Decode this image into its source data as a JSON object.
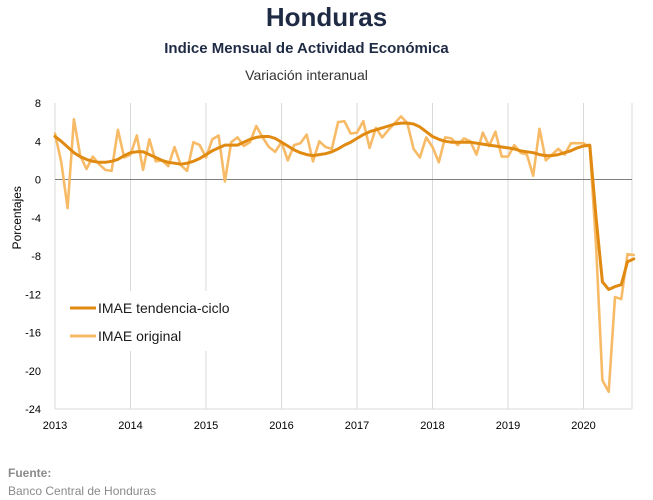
{
  "header": {
    "title": "Honduras",
    "subtitle": "Indice Mensual de  Actividad Económica",
    "subtitle2": "Variación interanual"
  },
  "source": {
    "label": "Fuente:",
    "text": "Banco Central de Honduras"
  },
  "colors": {
    "trend": "#e08a12",
    "original": "#f7bb68",
    "grid": "#d9d9d9",
    "zero_line": "#7f7f7f"
  },
  "chart_data": {
    "type": "line",
    "title": "Honduras",
    "subtitle": "Indice Mensual de  Actividad Económica",
    "ylabel": "Porcentajes",
    "xlabel": "",
    "ylim": [
      -24,
      8
    ],
    "yticks": [
      "8",
      "4",
      "0",
      "-4",
      "-8",
      "-12",
      "-16",
      "-20",
      "-24"
    ],
    "xticks": [
      "2013",
      "2014",
      "2015",
      "2016",
      "2017",
      "2018",
      "2019",
      "2020"
    ],
    "grid": "vertical at years",
    "legend_position": "lower-left",
    "series": [
      {
        "name": "IMAE tendencia-ciclo",
        "x": [
          "2013-01",
          "2013-02",
          "2013-03",
          "2013-04",
          "2013-05",
          "2013-06",
          "2013-07",
          "2013-08",
          "2013-09",
          "2013-10",
          "2013-11",
          "2013-12",
          "2014-01",
          "2014-02",
          "2014-03",
          "2014-04",
          "2014-05",
          "2014-06",
          "2014-07",
          "2014-08",
          "2014-09",
          "2014-10",
          "2014-11",
          "2014-12",
          "2015-01",
          "2015-02",
          "2015-03",
          "2015-04",
          "2015-05",
          "2015-06",
          "2015-07",
          "2015-08",
          "2015-09",
          "2015-10",
          "2015-11",
          "2015-12",
          "2016-01",
          "2016-02",
          "2016-03",
          "2016-04",
          "2016-05",
          "2016-06",
          "2016-07",
          "2016-08",
          "2016-09",
          "2016-10",
          "2016-11",
          "2016-12",
          "2017-01",
          "2017-02",
          "2017-03",
          "2017-04",
          "2017-05",
          "2017-06",
          "2017-07",
          "2017-08",
          "2017-09",
          "2017-10",
          "2017-11",
          "2017-12",
          "2018-01",
          "2018-02",
          "2018-03",
          "2018-04",
          "2018-05",
          "2018-06",
          "2018-07",
          "2018-08",
          "2018-09",
          "2018-10",
          "2018-11",
          "2018-12",
          "2019-01",
          "2019-02",
          "2019-03",
          "2019-04",
          "2019-05",
          "2019-06",
          "2019-07",
          "2019-08",
          "2019-09",
          "2019-10",
          "2019-11",
          "2019-12",
          "2020-01",
          "2020-02",
          "2020-03",
          "2020-04",
          "2020-05",
          "2020-06",
          "2020-07",
          "2020-08",
          "2020-09"
        ],
        "values": [
          4.5,
          4.0,
          3.4,
          2.8,
          2.4,
          2.1,
          1.9,
          1.8,
          1.8,
          1.9,
          2.1,
          2.5,
          2.8,
          2.9,
          2.9,
          2.6,
          2.3,
          2.0,
          1.8,
          1.7,
          1.6,
          1.7,
          1.9,
          2.2,
          2.6,
          3.0,
          3.3,
          3.6,
          3.6,
          3.6,
          3.9,
          4.2,
          4.4,
          4.5,
          4.5,
          4.3,
          3.9,
          3.5,
          3.1,
          2.8,
          2.6,
          2.5,
          2.6,
          2.7,
          2.9,
          3.2,
          3.6,
          3.9,
          4.3,
          4.7,
          5.0,
          5.2,
          5.4,
          5.6,
          5.8,
          5.9,
          5.9,
          5.8,
          5.5,
          5.0,
          4.5,
          4.2,
          4.0,
          3.9,
          3.9,
          3.9,
          3.9,
          3.8,
          3.7,
          3.6,
          3.5,
          3.4,
          3.3,
          3.2,
          3.0,
          2.9,
          2.8,
          2.6,
          2.5,
          2.5,
          2.6,
          2.8,
          3.0,
          3.3,
          3.5,
          3.6,
          -4.0,
          -10.7,
          -11.5,
          -11.2,
          -11.0,
          -8.6,
          -8.3
        ]
      },
      {
        "name": "IMAE original",
        "x": [
          "2013-01",
          "2013-02",
          "2013-03",
          "2013-04",
          "2013-05",
          "2013-06",
          "2013-07",
          "2013-08",
          "2013-09",
          "2013-10",
          "2013-11",
          "2013-12",
          "2014-01",
          "2014-02",
          "2014-03",
          "2014-04",
          "2014-05",
          "2014-06",
          "2014-07",
          "2014-08",
          "2014-09",
          "2014-10",
          "2014-11",
          "2014-12",
          "2015-01",
          "2015-02",
          "2015-03",
          "2015-04",
          "2015-05",
          "2015-06",
          "2015-07",
          "2015-08",
          "2015-09",
          "2015-10",
          "2015-11",
          "2015-12",
          "2016-01",
          "2016-02",
          "2016-03",
          "2016-04",
          "2016-05",
          "2016-06",
          "2016-07",
          "2016-08",
          "2016-09",
          "2016-10",
          "2016-11",
          "2016-12",
          "2017-01",
          "2017-02",
          "2017-03",
          "2017-04",
          "2017-05",
          "2017-06",
          "2017-07",
          "2017-08",
          "2017-09",
          "2017-10",
          "2017-11",
          "2017-12",
          "2018-01",
          "2018-02",
          "2018-03",
          "2018-04",
          "2018-05",
          "2018-06",
          "2018-07",
          "2018-08",
          "2018-09",
          "2018-10",
          "2018-11",
          "2018-12",
          "2019-01",
          "2019-02",
          "2019-03",
          "2019-04",
          "2019-05",
          "2019-06",
          "2019-07",
          "2019-08",
          "2019-09",
          "2019-10",
          "2019-11",
          "2019-12",
          "2020-01",
          "2020-02",
          "2020-03",
          "2020-04",
          "2020-05",
          "2020-06",
          "2020-07",
          "2020-08",
          "2020-09"
        ],
        "values": [
          4.8,
          1.8,
          -3.0,
          6.3,
          2.5,
          1.1,
          2.4,
          1.6,
          1.0,
          0.9,
          5.2,
          2.3,
          2.6,
          4.6,
          1.0,
          4.2,
          1.9,
          2.0,
          1.4,
          3.4,
          1.5,
          0.9,
          3.9,
          3.6,
          2.3,
          4.2,
          4.6,
          -0.2,
          3.9,
          4.4,
          3.5,
          3.9,
          5.6,
          4.4,
          3.4,
          2.9,
          3.9,
          2.0,
          3.6,
          3.8,
          4.7,
          1.9,
          4.0,
          3.4,
          3.2,
          6.0,
          6.1,
          4.8,
          4.9,
          6.1,
          3.3,
          5.4,
          4.4,
          5.2,
          5.9,
          6.6,
          5.9,
          3.2,
          2.3,
          4.4,
          3.4,
          1.8,
          4.4,
          4.3,
          3.6,
          4.3,
          4.0,
          2.6,
          4.9,
          3.5,
          5.0,
          2.4,
          2.4,
          3.6,
          2.8,
          2.6,
          0.4,
          5.3,
          2.0,
          2.6,
          3.2,
          2.6,
          3.8,
          3.8,
          3.8,
          3.4,
          -7.0,
          -21.0,
          -22.2,
          -12.3,
          -12.5,
          -7.8,
          -7.9
        ]
      }
    ]
  }
}
